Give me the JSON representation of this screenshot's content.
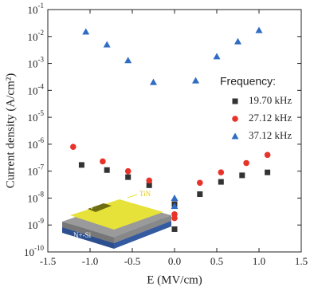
{
  "chart_data": {
    "type": "scatter",
    "xlabel": "E (MV/cm)",
    "ylabel": "Current density (A/cm²)",
    "xlim": [
      -1.5,
      1.5
    ],
    "ylim": [
      1e-10,
      0.1
    ],
    "log_y": true,
    "xticks": [
      -1.5,
      {
        "value": -1,
        "label": "-1.0"
      },
      -0.5,
      {
        "value": 0,
        "label": "0.0"
      },
      0.5,
      {
        "value": 1,
        "label": "1.0"
      },
      1.5
    ],
    "yticks": [
      {
        "value": 1e-10,
        "label": "10",
        "exponent": "-10"
      },
      {
        "value": 1e-09,
        "label": "10",
        "exponent": "-9"
      },
      {
        "value": 1e-08,
        "label": "10",
        "exponent": "-8"
      },
      {
        "value": 1e-07,
        "label": "10",
        "exponent": "-7"
      },
      {
        "value": 1e-06,
        "label": "10",
        "exponent": "-6"
      },
      {
        "value": 1e-05,
        "label": "10",
        "exponent": "-5"
      },
      {
        "value": 0.0001,
        "label": "10",
        "exponent": "-4"
      },
      {
        "value": 0.001,
        "label": "10",
        "exponent": "-3"
      },
      {
        "value": 0.01,
        "label": "10",
        "exponent": "-2"
      },
      {
        "value": 0.1,
        "label": "10",
        "exponent": "-1"
      }
    ],
    "legend_title": "Frequency:",
    "legend": "right",
    "series": [
      {
        "name": "19.70 kHz",
        "color": "#333333",
        "marker": "square",
        "x": [
          -1.1,
          -0.8,
          -0.55,
          -0.3,
          0,
          0,
          0.3,
          0.55,
          0.8,
          1.1
        ],
        "values": [
          1.7e-07,
          1.1e-07,
          6e-08,
          3e-08,
          6e-09,
          7e-10,
          1.4e-08,
          4e-08,
          7e-08,
          9e-08
        ]
      },
      {
        "name": "27.12 kHz",
        "color": "#e8322a",
        "marker": "circle",
        "x": [
          -1.2,
          -0.85,
          -0.55,
          -0.3,
          0,
          0,
          0.3,
          0.55,
          0.85,
          1.1
        ],
        "values": [
          8e-07,
          2.3e-07,
          1e-07,
          4.5e-08,
          2.5e-09,
          1.8e-09,
          3.7e-08,
          9e-08,
          2e-07,
          4e-07
        ]
      },
      {
        "name": "37.12 kHz",
        "color": "#2f6cc4",
        "marker": "triangle",
        "x": [
          -1.05,
          -0.8,
          -0.55,
          -0.25,
          0,
          0,
          0.25,
          0.5,
          0.75,
          1
        ],
        "values": [
          0.015,
          0.005,
          0.0013,
          0.0002,
          1e-08,
          5e-09,
          0.00023,
          0.0018,
          0.0065,
          0.017
        ]
      }
    ],
    "annotations": [
      "TiN",
      "N+-Si"
    ]
  }
}
